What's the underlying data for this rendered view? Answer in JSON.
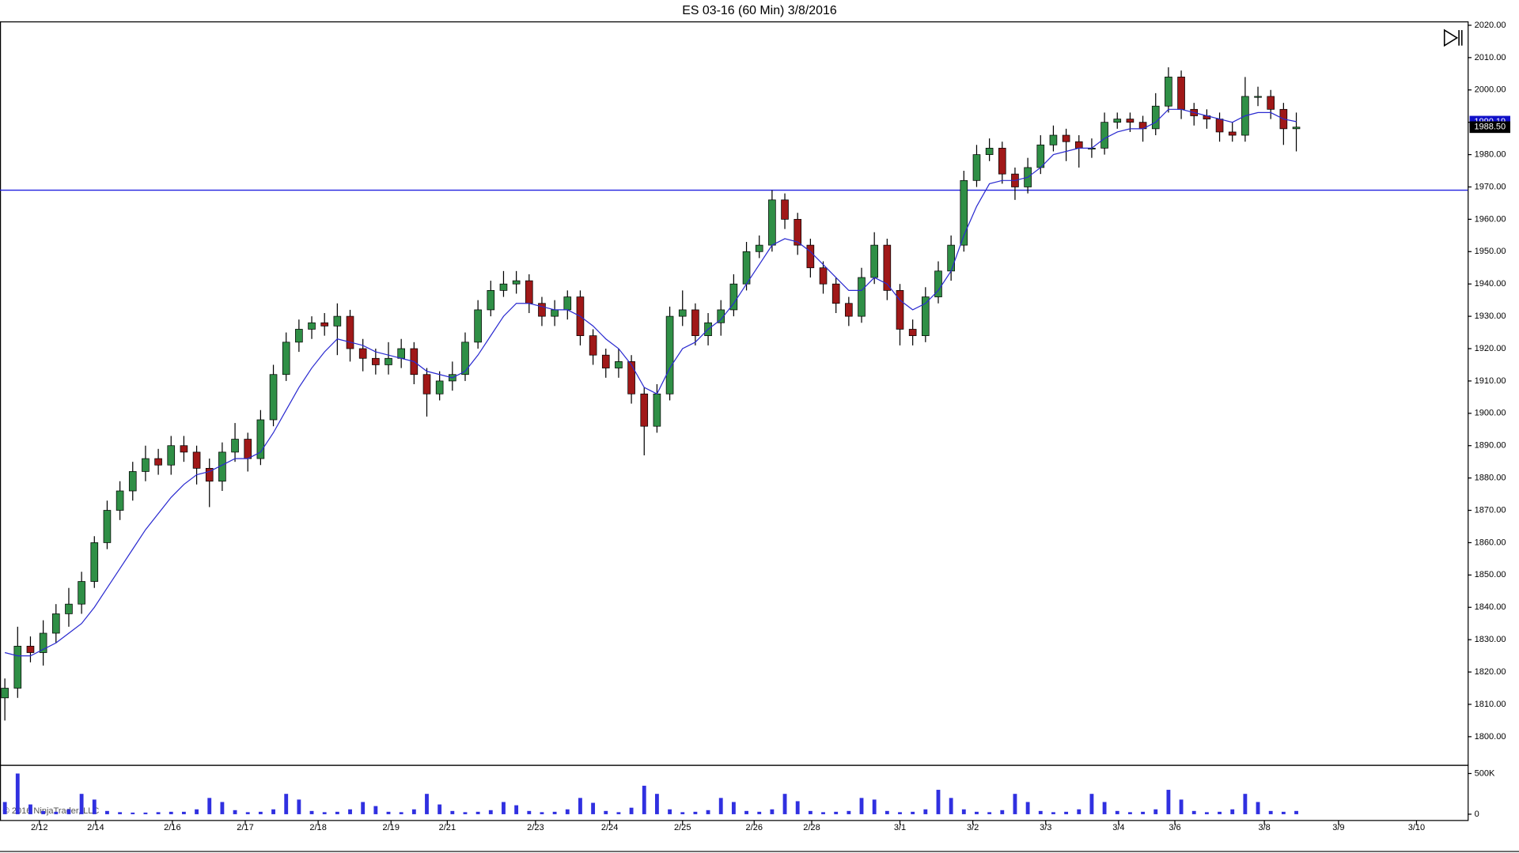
{
  "chart_data": {
    "type": "candlestick",
    "title": "ES 03-16 (60 Min)  3/8/2016",
    "copyright": "© 2016 NinjaTrader, LLC",
    "up_color": "#2f8f46",
    "down_color": "#a01818",
    "ma_color": "#2a2ad0",
    "volume_color": "#3030e0",
    "xlim": [
      -0.38,
      114.4
    ],
    "xticks": [
      {
        "value": 2.7,
        "label": "2/12"
      },
      {
        "value": 7.1,
        "label": "2/14"
      },
      {
        "value": 13.1,
        "label": "2/16"
      },
      {
        "value": 18.8,
        "label": "2/17"
      },
      {
        "value": 24.5,
        "label": "2/18"
      },
      {
        "value": 30.2,
        "label": "2/19"
      },
      {
        "value": 34.6,
        "label": "2/21"
      },
      {
        "value": 41.5,
        "label": "2/23"
      },
      {
        "value": 47.3,
        "label": "2/24"
      },
      {
        "value": 53.0,
        "label": "2/25"
      },
      {
        "value": 58.6,
        "label": "2/26"
      },
      {
        "value": 63.1,
        "label": "2/28"
      },
      {
        "value": 70.0,
        "label": "3/1"
      },
      {
        "value": 75.7,
        "label": "3/2"
      },
      {
        "value": 81.4,
        "label": "3/3"
      },
      {
        "value": 87.1,
        "label": "3/4"
      },
      {
        "value": 91.5,
        "label": "3/6"
      },
      {
        "value": 98.5,
        "label": "3/8"
      },
      {
        "value": 104.3,
        "label": "3/9"
      },
      {
        "value": 110.4,
        "label": "3/10"
      }
    ],
    "ylim": [
      1791.3,
      2021.2
    ],
    "yticks": [
      {
        "value": 2020,
        "label": "2020.00"
      },
      {
        "value": 2010,
        "label": "2010.00"
      },
      {
        "value": 2000,
        "label": "2000.00"
      },
      {
        "value": 1990,
        "label": "1990.00"
      },
      {
        "value": 1980,
        "label": "1980.00"
      },
      {
        "value": 1970,
        "label": "1970.00"
      },
      {
        "value": 1960,
        "label": "1960.00"
      },
      {
        "value": 1950,
        "label": "1950.00"
      },
      {
        "value": 1940,
        "label": "1940.00"
      },
      {
        "value": 1930,
        "label": "1930.00"
      },
      {
        "value": 1920,
        "label": "1920.00"
      },
      {
        "value": 1910,
        "label": "1910.00"
      },
      {
        "value": 1900,
        "label": "1900.00"
      },
      {
        "value": 1890,
        "label": "1890.00"
      },
      {
        "value": 1880,
        "label": "1880.00"
      },
      {
        "value": 1870,
        "label": "1870.00"
      },
      {
        "value": 1860,
        "label": "1860.00"
      },
      {
        "value": 1850,
        "label": "1850.00"
      },
      {
        "value": 1840,
        "label": "1840.00"
      },
      {
        "value": 1830,
        "label": "1830.00"
      },
      {
        "value": 1820,
        "label": "1820.00"
      },
      {
        "value": 1810,
        "label": "1810.00"
      },
      {
        "value": 1800,
        "label": "1800.00"
      }
    ],
    "open": [
      1812,
      1815,
      1828,
      1826,
      1832,
      1838,
      1841,
      1848,
      1860,
      1870,
      1876,
      1882,
      1886,
      1884,
      1890,
      1888,
      1883,
      1879,
      1888,
      1892,
      1886,
      1898,
      1912,
      1922,
      1926,
      1928,
      1927,
      1930,
      1920,
      1917,
      1915,
      1917,
      1920,
      1912,
      1906,
      1910,
      1912,
      1922,
      1932,
      1938,
      1940,
      1941,
      1934,
      1930,
      1932,
      1936,
      1924,
      1918,
      1914,
      1916,
      1906,
      1896,
      1906,
      1930,
      1932,
      1924,
      1928,
      1932,
      1940,
      1950,
      1952,
      1966,
      1960,
      1952,
      1945,
      1940,
      1934,
      1930,
      1942,
      1952,
      1938,
      1926,
      1924,
      1936,
      1944,
      1952,
      1972,
      1980,
      1982,
      1974,
      1970,
      1976,
      1983,
      1986,
      1984,
      1982,
      1982,
      1990,
      1991,
      1990,
      1988,
      1995,
      2004,
      1994,
      1992,
      1991,
      1987,
      1986,
      1998,
      1998,
      1994,
      1988
    ],
    "high": [
      1818,
      1834,
      1831,
      1836,
      1841,
      1846,
      1851,
      1862,
      1873,
      1879,
      1885,
      1890,
      1889,
      1893,
      1893,
      1890,
      1886,
      1891,
      1897,
      1894,
      1901,
      1915,
      1925,
      1929,
      1930,
      1931,
      1934,
      1932,
      1923,
      1920,
      1922,
      1923,
      1922,
      1914,
      1913,
      1916,
      1925,
      1935,
      1941,
      1944,
      1944,
      1943,
      1936,
      1935,
      1938,
      1938,
      1926,
      1920,
      1920,
      1918,
      1908,
      1909,
      1933,
      1938,
      1934,
      1931,
      1935,
      1943,
      1953,
      1955,
      1969,
      1968,
      1962,
      1954,
      1947,
      1942,
      1936,
      1945,
      1956,
      1954,
      1940,
      1929,
      1939,
      1947,
      1955,
      1975,
      1983,
      1985,
      1984,
      1976,
      1979,
      1986,
      1989,
      1988,
      1986,
      1985,
      1993,
      1993,
      1993,
      1992,
      1999,
      2007,
      2006,
      1996,
      1994,
      1993,
      1990,
      2004,
      2001,
      2000,
      1996,
      1993
    ],
    "low": [
      1805,
      1812,
      1823,
      1822,
      1829,
      1834,
      1838,
      1846,
      1858,
      1867,
      1873,
      1879,
      1881,
      1881,
      1885,
      1878,
      1871,
      1876,
      1885,
      1882,
      1884,
      1896,
      1910,
      1919,
      1923,
      1924,
      1918,
      1916,
      1913,
      1912,
      1912,
      1914,
      1909,
      1899,
      1904,
      1907,
      1910,
      1920,
      1930,
      1936,
      1937,
      1931,
      1927,
      1927,
      1929,
      1921,
      1915,
      1911,
      1911,
      1903,
      1887,
      1894,
      1904,
      1927,
      1921,
      1921,
      1924,
      1930,
      1938,
      1948,
      1950,
      1957,
      1949,
      1942,
      1937,
      1931,
      1927,
      1928,
      1940,
      1935,
      1921,
      1921,
      1922,
      1934,
      1941,
      1950,
      1970,
      1978,
      1971,
      1966,
      1968,
      1974,
      1981,
      1978,
      1976,
      1979,
      1980,
      1988,
      1987,
      1984,
      1986,
      1993,
      1991,
      1989,
      1988,
      1984,
      1984,
      1984,
      1995,
      1991,
      1983,
      1981
    ],
    "close": [
      1815,
      1828,
      1826,
      1832,
      1838,
      1841,
      1848,
      1860,
      1870,
      1876,
      1882,
      1886,
      1884,
      1890,
      1888,
      1883,
      1879,
      1888,
      1892,
      1886,
      1898,
      1912,
      1922,
      1926,
      1928,
      1927,
      1930,
      1920,
      1917,
      1915,
      1917,
      1920,
      1912,
      1906,
      1910,
      1912,
      1922,
      1932,
      1938,
      1940,
      1941,
      1934,
      1930,
      1932,
      1936,
      1924,
      1918,
      1914,
      1916,
      1906,
      1896,
      1906,
      1930,
      1932,
      1924,
      1928,
      1932,
      1940,
      1950,
      1952,
      1966,
      1960,
      1952,
      1945,
      1940,
      1934,
      1930,
      1942,
      1952,
      1938,
      1926,
      1924,
      1936,
      1944,
      1952,
      1972,
      1980,
      1982,
      1974,
      1970,
      1976,
      1983,
      1986,
      1984,
      1982,
      1982,
      1990,
      1991,
      1990,
      1988,
      1995,
      2004,
      1994,
      1992,
      1991,
      1987,
      1986,
      1998,
      1998,
      1994,
      1988,
      1988.5
    ],
    "ma": [
      1826,
      1825,
      1825,
      1827,
      1829,
      1832,
      1835,
      1840,
      1846,
      1852,
      1858,
      1864,
      1869,
      1874,
      1878,
      1881,
      1882,
      1884,
      1886,
      1886,
      1888,
      1894,
      1901,
      1908,
      1914,
      1919,
      1923,
      1922,
      1921,
      1919,
      1918,
      1917,
      1916,
      1913,
      1912,
      1911,
      1913,
      1918,
      1924,
      1930,
      1934,
      1934,
      1933,
      1932,
      1932,
      1930,
      1927,
      1923,
      1920,
      1915,
      1908,
      1906,
      1914,
      1920,
      1922,
      1926,
      1929,
      1934,
      1940,
      1946,
      1952,
      1954,
      1953,
      1950,
      1946,
      1942,
      1938,
      1938,
      1942,
      1940,
      1935,
      1932,
      1934,
      1938,
      1944,
      1955,
      1964,
      1971,
      1972,
      1972,
      1973,
      1976,
      1980,
      1981,
      1982,
      1982,
      1985,
      1987,
      1988,
      1988,
      1990,
      1994,
      1994,
      1993,
      1992,
      1991,
      1990,
      1992,
      1993,
      1993,
      1991,
      1990.19
    ],
    "hlines": [
      {
        "value": 1969,
        "color": "#1f1fe0"
      }
    ],
    "price_markers": [
      {
        "value": 1990.19,
        "label": "1990.19",
        "color": "#1010c8"
      },
      {
        "value": 1988.5,
        "label": "1988.50",
        "color": "#000000"
      }
    ],
    "volume": [
      150000,
      500000,
      120000,
      40000,
      30000,
      60000,
      250000,
      180000,
      40000,
      25000,
      20000,
      20000,
      25000,
      30000,
      30000,
      60000,
      200000,
      150000,
      50000,
      25000,
      30000,
      60000,
      250000,
      180000,
      40000,
      25000,
      30000,
      60000,
      150000,
      100000,
      30000,
      25000,
      60000,
      250000,
      120000,
      40000,
      25000,
      30000,
      50000,
      150000,
      110000,
      40000,
      25000,
      30000,
      60000,
      200000,
      140000,
      40000,
      25000,
      80000,
      350000,
      250000,
      60000,
      25000,
      30000,
      50000,
      200000,
      150000,
      40000,
      30000,
      60000,
      250000,
      160000,
      40000,
      25000,
      30000,
      40000,
      200000,
      180000,
      40000,
      25000,
      30000,
      60000,
      300000,
      200000,
      60000,
      30000,
      25000,
      50000,
      250000,
      150000,
      40000,
      25000,
      30000,
      60000,
      250000,
      150000,
      40000,
      25000,
      30000,
      60000,
      300000,
      180000,
      40000,
      25000,
      30000,
      60000,
      250000,
      150000,
      40000,
      30000,
      40000
    ],
    "vlim": [
      -83000,
      595000
    ],
    "vticks": [
      {
        "value": 500000,
        "label": "500K"
      },
      0
    ]
  }
}
